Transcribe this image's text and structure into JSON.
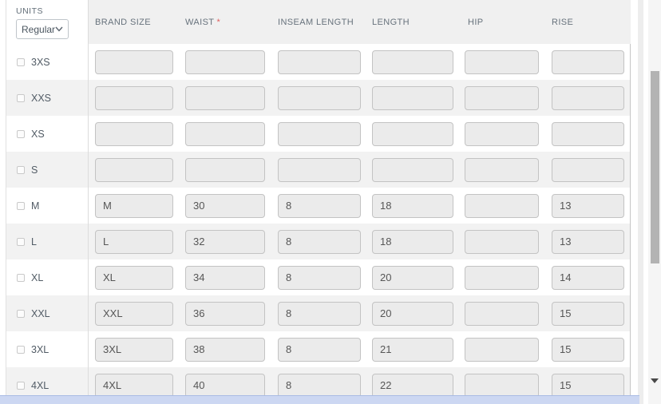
{
  "units": {
    "label": "UNITS",
    "selected": "Regular"
  },
  "required_marker": "*",
  "columns": [
    {
      "label": "BRAND SIZE",
      "required": false
    },
    {
      "label": "WAIST",
      "required": true
    },
    {
      "label": "INSEAM LENGTH",
      "required": false
    },
    {
      "label": "LENGTH",
      "required": false
    },
    {
      "label": "HIP",
      "required": false
    },
    {
      "label": "RISE",
      "required": false
    }
  ],
  "rows": [
    {
      "size": "3XS",
      "checked": false,
      "values": [
        "",
        "",
        "",
        "",
        "",
        ""
      ]
    },
    {
      "size": "XXS",
      "checked": false,
      "values": [
        "",
        "",
        "",
        "",
        "",
        ""
      ]
    },
    {
      "size": "XS",
      "checked": false,
      "values": [
        "",
        "",
        "",
        "",
        "",
        ""
      ]
    },
    {
      "size": "S",
      "checked": false,
      "values": [
        "",
        "",
        "",
        "",
        "",
        ""
      ]
    },
    {
      "size": "M",
      "checked": false,
      "values": [
        "M",
        "30",
        "8",
        "18",
        "",
        "13"
      ]
    },
    {
      "size": "L",
      "checked": false,
      "values": [
        "L",
        "32",
        "8",
        "18",
        "",
        "13"
      ]
    },
    {
      "size": "XL",
      "checked": false,
      "values": [
        "XL",
        "34",
        "8",
        "20",
        "",
        "14"
      ]
    },
    {
      "size": "XXL",
      "checked": false,
      "values": [
        "XXL",
        "36",
        "8",
        "20",
        "",
        "15"
      ]
    },
    {
      "size": "3XL",
      "checked": false,
      "values": [
        "3XL",
        "38",
        "8",
        "21",
        "",
        "15"
      ]
    },
    {
      "size": "4XL",
      "checked": false,
      "values": [
        "4XL",
        "40",
        "8",
        "22",
        "",
        "15"
      ]
    }
  ],
  "colors": {
    "required_asterisk": "#e05f5e",
    "header_band": "#f0f0f0",
    "zebra_row": "#f2f2f2",
    "input_fill": "#ebebeb",
    "horizontal_scrollbar_thumb": "#ccd7f2",
    "vertical_scrollbar_thumb": "#b3b3b3"
  }
}
